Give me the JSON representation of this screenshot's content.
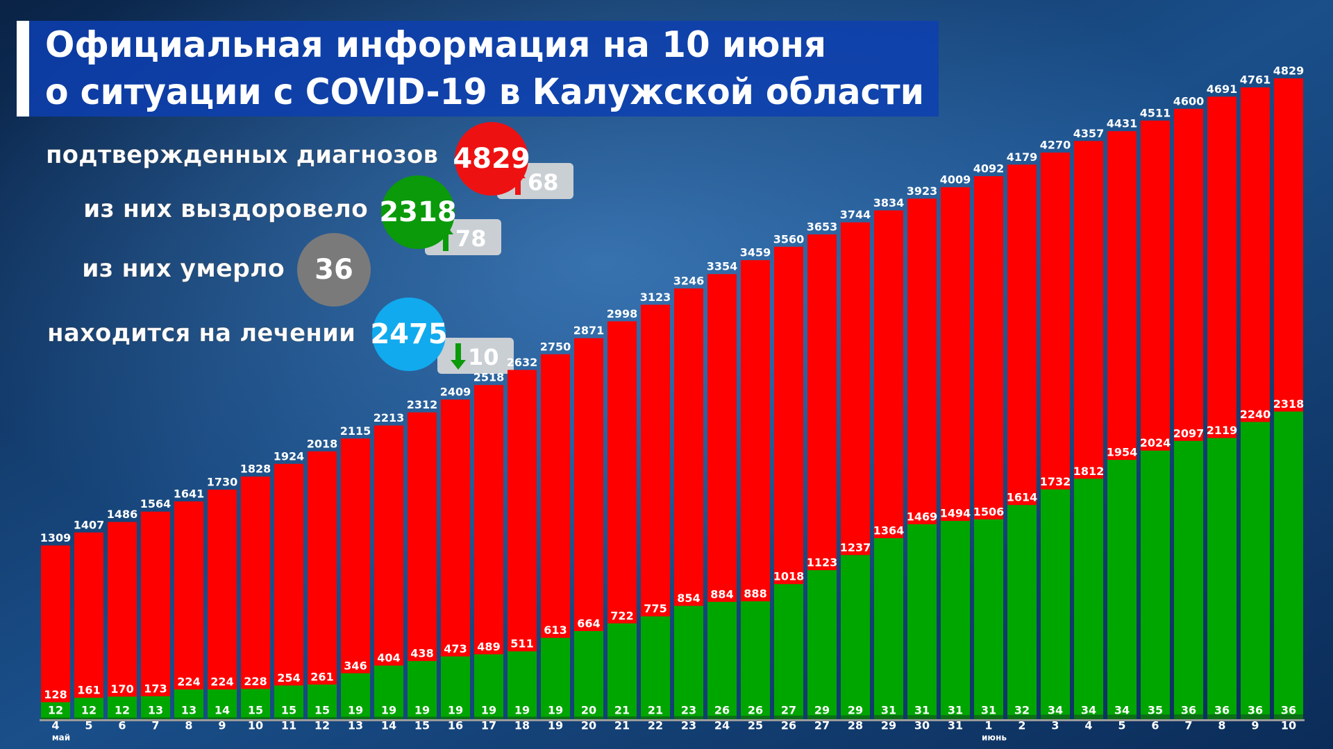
{
  "header": {
    "title_line1": "Официальная информация на 10 июня",
    "title_line2": "о ситуации с COVID-19 в Калужской области"
  },
  "summary": [
    {
      "label": "подтвержденных диагнозов",
      "label_color": "#ffffff",
      "value": 4829,
      "circle_color": "#ee1111",
      "change": 68,
      "direction": "up",
      "change_color": "#ee1111"
    },
    {
      "label": "из них выздоровело",
      "label_color": "#22dd22",
      "value": 2318,
      "circle_color": "#0a9a0a",
      "change": 78,
      "direction": "up",
      "change_color": "#0a9a0a"
    },
    {
      "label": "из них умерло",
      "label_color": "#8a8a8a",
      "value": 36,
      "circle_color": "#7a7a7a"
    },
    {
      "label": "находится на лечении",
      "label_color": "#ffffff",
      "value": 2475,
      "circle_color": "#11aaee",
      "change": 10,
      "direction": "down",
      "change_color": "#0a9a0a"
    }
  ],
  "chart_data": {
    "type": "bar",
    "categories": [
      "4",
      "5",
      "6",
      "7",
      "8",
      "9",
      "10",
      "11",
      "12",
      "13",
      "14",
      "15",
      "16",
      "17",
      "18",
      "19",
      "20",
      "21",
      "22",
      "23",
      "24",
      "25",
      "26",
      "27",
      "28",
      "29",
      "30",
      "31",
      "1",
      "2",
      "3",
      "4",
      "5",
      "6",
      "7",
      "8",
      "9",
      "10"
    ],
    "month_labels": [
      "май",
      null,
      null,
      null,
      null,
      null,
      null,
      null,
      null,
      null,
      null,
      null,
      null,
      null,
      null,
      null,
      null,
      null,
      null,
      null,
      null,
      null,
      null,
      null,
      null,
      null,
      null,
      null,
      "июнь",
      null,
      null,
      null,
      null,
      null,
      null,
      null,
      null,
      null
    ],
    "series": [
      {
        "color": "#ff0000",
        "values": [
          1309,
          1407,
          1486,
          1564,
          1641,
          1730,
          1828,
          1924,
          2018,
          2115,
          2213,
          2312,
          2409,
          2518,
          2632,
          2750,
          2871,
          2998,
          3123,
          3246,
          3354,
          3459,
          3560,
          3653,
          3744,
          3834,
          3923,
          4009,
          4092,
          4179,
          4270,
          4357,
          4431,
          4511,
          4600,
          4691,
          4761,
          4829
        ]
      },
      {
        "color": "#00a600",
        "values": [
          128,
          161,
          170,
          173,
          224,
          224,
          228,
          254,
          261,
          346,
          404,
          438,
          473,
          489,
          511,
          613,
          664,
          722,
          775,
          854,
          884,
          888,
          1018,
          1123,
          1237,
          1364,
          1469,
          1494,
          1506,
          1614,
          1732,
          1812,
          1954,
          2024,
          2097,
          2119,
          2240,
          2318
        ]
      },
      {
        "color": "#0c6e16",
        "values": [
          12,
          12,
          12,
          13,
          13,
          14,
          15,
          15,
          15,
          19,
          19,
          19,
          19,
          19,
          19,
          19,
          20,
          21,
          21,
          23,
          26,
          26,
          27,
          29,
          29,
          31,
          31,
          31,
          31,
          32,
          34,
          34,
          34,
          35,
          36,
          36,
          36,
          36
        ]
      }
    ]
  }
}
